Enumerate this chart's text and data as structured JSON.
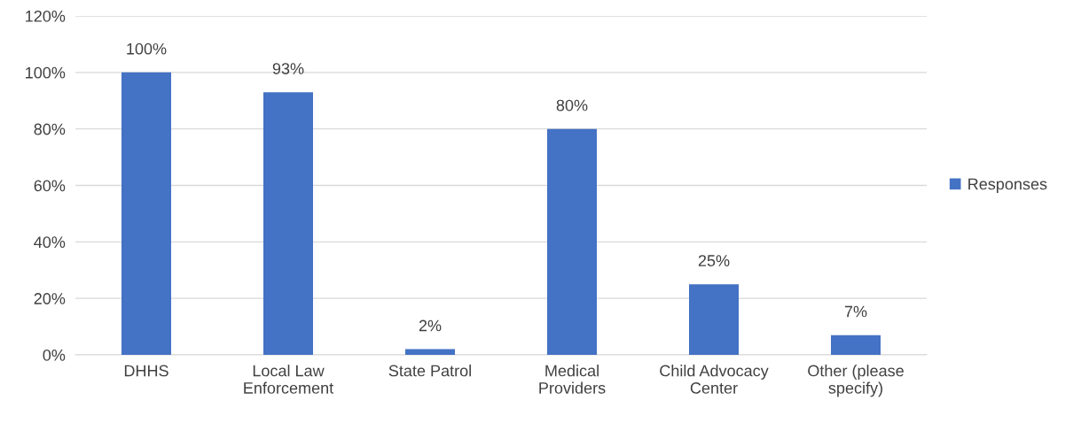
{
  "chart_data": {
    "type": "bar",
    "categories": [
      "DHHS",
      "Local Law\nEnforcement",
      "State Patrol",
      "Medical\nProviders",
      "Child Advocacy\nCenter",
      "Other (please\nspecify)"
    ],
    "series": [
      {
        "name": "Responses",
        "color": "#4472c4",
        "values": [
          100,
          93,
          2,
          80,
          25,
          7
        ],
        "value_labels": [
          "100%",
          "93%",
          "2%",
          "80%",
          "25%",
          "7%"
        ]
      }
    ],
    "ylim": [
      0,
      120
    ],
    "yticks": [
      {
        "value": 0,
        "label": "0%"
      },
      {
        "value": 20,
        "label": "20%"
      },
      {
        "value": 40,
        "label": "40%"
      },
      {
        "value": 60,
        "label": "60%"
      },
      {
        "value": 80,
        "label": "80%"
      },
      {
        "value": 100,
        "label": "100%"
      },
      {
        "value": 120,
        "label": "120%"
      }
    ],
    "grid": "y",
    "legend": "right"
  }
}
